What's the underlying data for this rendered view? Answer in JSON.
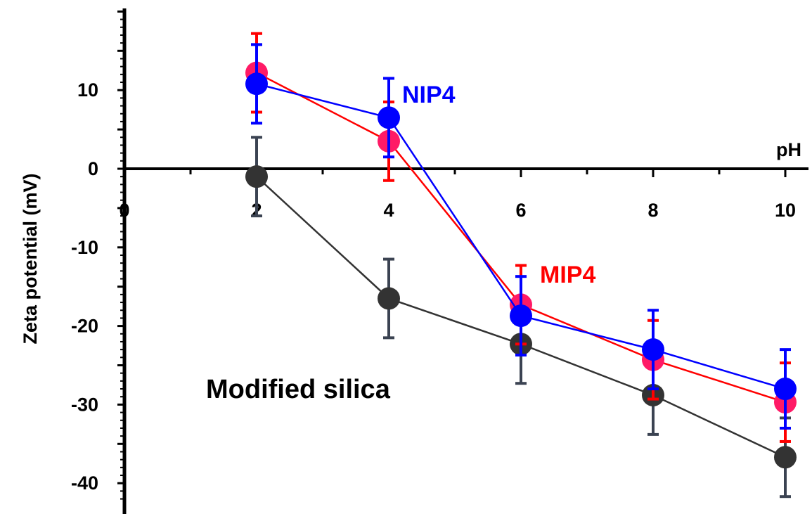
{
  "chart_data": {
    "type": "line",
    "title": "",
    "xlabel": "pH",
    "ylabel": "Zeta potential (mV)",
    "xlim": [
      0,
      10.5
    ],
    "ylim": [
      -42,
      20
    ],
    "xticks": [
      0,
      2,
      4,
      6,
      8,
      10
    ],
    "yticks": [
      10,
      0,
      -10,
      -20,
      -30,
      -40
    ],
    "xtick_labels": [
      "0",
      "2",
      "4",
      "6",
      "8",
      "10"
    ],
    "ytick_labels": [
      "10",
      "0",
      "-10",
      "-20",
      "-30",
      "-40"
    ],
    "grid": false,
    "legend": "none",
    "series": [
      {
        "name": "Modified silica",
        "color": "#333333",
        "marker_color": "#333333",
        "error_color": "#3b4352",
        "x": [
          2,
          4,
          6,
          8,
          10
        ],
        "y": [
          -1,
          -16.5,
          -22.3,
          -28.8,
          -36.7
        ],
        "err": [
          5,
          5,
          5,
          5,
          5
        ]
      },
      {
        "name": "MIP4",
        "color": "#ff0000",
        "marker_color": "#ff1a66",
        "error_color": "#ff0000",
        "x": [
          2,
          4,
          6,
          8,
          10
        ],
        "y": [
          12.2,
          3.5,
          -17.3,
          -24.3,
          -29.7
        ],
        "err": [
          5,
          5,
          5,
          5,
          5
        ]
      },
      {
        "name": "NIP4",
        "color": "#0000ff",
        "marker_color": "#0000ff",
        "error_color": "#0000ff",
        "x": [
          2,
          4,
          6,
          8,
          10
        ],
        "y": [
          10.8,
          6.5,
          -18.7,
          -23,
          -28
        ],
        "err": [
          5,
          5,
          5,
          5,
          5
        ]
      }
    ],
    "annotations": [
      {
        "text": "NIP4",
        "color": "#0000ff"
      },
      {
        "text": "MIP4",
        "color": "#ff0000"
      },
      {
        "text": "Modified silica",
        "color": "#000000"
      }
    ]
  }
}
